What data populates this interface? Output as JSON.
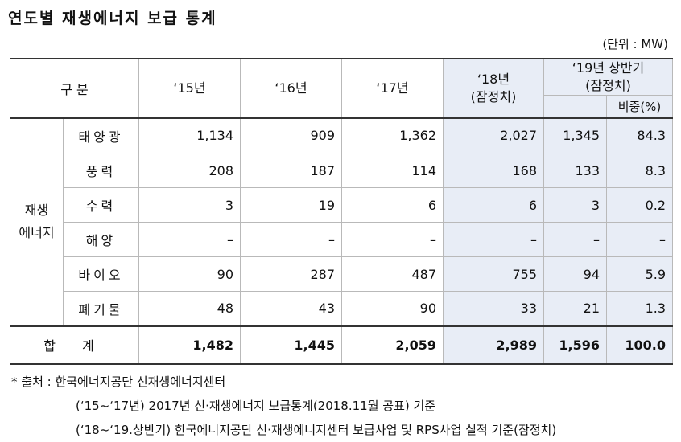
{
  "title": "연도별 재생에너지 보급 통계",
  "unit": "(단위 : MW)",
  "table": {
    "header_label": "구  분",
    "years": [
      "‘15년",
      "‘16년",
      "‘17년"
    ],
    "y18": [
      "‘18년",
      "(잠정치)"
    ],
    "y19": [
      "‘19년 상반기",
      "(잠정치)"
    ],
    "share_label": "비중(%)",
    "group_label_1": "재생",
    "group_label_2": "에너지",
    "rows": [
      {
        "label": "태양광",
        "values": [
          "1,134",
          "909",
          "1,362",
          "2,027",
          "1,345",
          "84.3"
        ]
      },
      {
        "label": "풍력",
        "values": [
          "208",
          "187",
          "114",
          "168",
          "133",
          "8.3"
        ]
      },
      {
        "label": "수력",
        "values": [
          "3",
          "19",
          "6",
          "6",
          "3",
          "0.2"
        ]
      },
      {
        "label": "해양",
        "values": [
          "–",
          "–",
          "–",
          "–",
          "–",
          "–"
        ]
      },
      {
        "label": "바이오",
        "values": [
          "90",
          "287",
          "487",
          "755",
          "94",
          "5.9"
        ]
      },
      {
        "label": "폐기물",
        "values": [
          "48",
          "43",
          "90",
          "33",
          "21",
          "1.3"
        ]
      }
    ],
    "total": {
      "label": "합 계",
      "values": [
        "1,482",
        "1,445",
        "2,059",
        "2,989",
        "1,596",
        "100.0"
      ]
    }
  },
  "notes": {
    "line1": "* 출처 : 한국에너지공단 신재생에너지센터",
    "line2": "(‘15~‘17년) 2017년 신·재생에너지 보급통계(2018.11월 공표) 기준",
    "line3": "(‘18~‘19.상반기) 한국에너지공단 신·재생에너지센터 보급사업 및 RPS사업 실적 기준(잠정치)"
  }
}
